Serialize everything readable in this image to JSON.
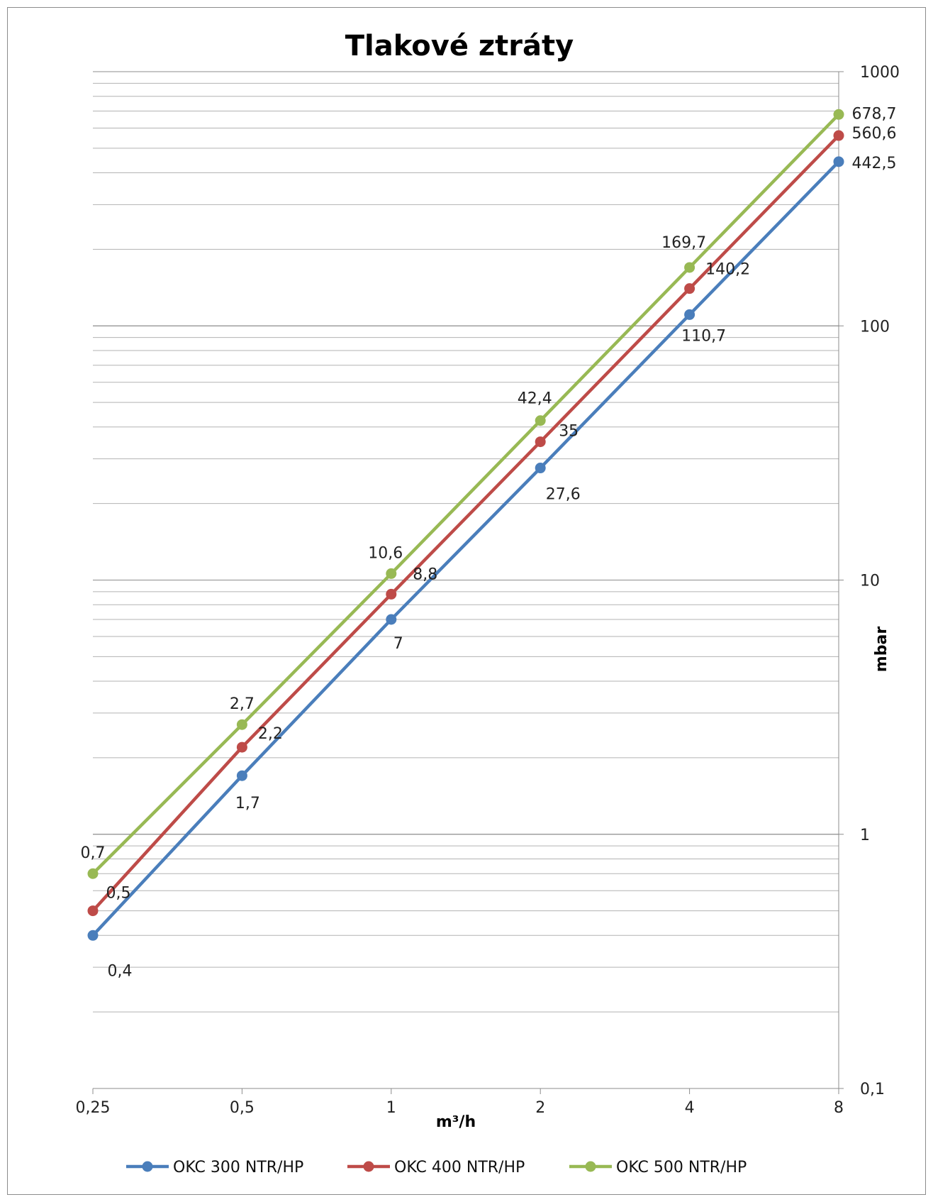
{
  "chart_data": {
    "type": "line",
    "title": "Tlakové ztráty",
    "xlabel": "m³/h",
    "ylabel": "mbar",
    "x_scale": "log2",
    "y_scale": "log10",
    "x": [
      0.25,
      0.5,
      1,
      2,
      4,
      8
    ],
    "x_tick_labels": [
      "0,25",
      "0,5",
      "1",
      "2",
      "4",
      "8"
    ],
    "ylim": [
      0.1,
      1000
    ],
    "y_tick_labels": [
      "0,1",
      "1",
      "10",
      "100",
      "1000"
    ],
    "y_ticks": [
      0.1,
      1,
      10,
      100,
      1000
    ],
    "grid": true,
    "legend_position": "bottom",
    "series": [
      {
        "name": "OKC 300 NTR/HP",
        "color": "#4a7ebb",
        "values": [
          0.4,
          1.7,
          7,
          27.6,
          110.7,
          442.5
        ],
        "labels": [
          "0,4",
          "1,7",
          "7",
          "27,6",
          "110,7",
          "442,5"
        ]
      },
      {
        "name": "OKC 400 NTR/HP",
        "color": "#be4b48",
        "values": [
          0.5,
          2.2,
          8.8,
          35,
          140.2,
          560.6
        ],
        "labels": [
          "0,5",
          "2,2",
          "8,8",
          "35",
          "140,2",
          "560,6"
        ]
      },
      {
        "name": "OKC 500 NTR/HP",
        "color": "#98b954",
        "values": [
          0.7,
          2.7,
          10.6,
          42.4,
          169.7,
          678.7
        ],
        "labels": [
          "0,7",
          "2,7",
          "10,6",
          "42,4",
          "169,7",
          "678,7"
        ]
      }
    ]
  }
}
